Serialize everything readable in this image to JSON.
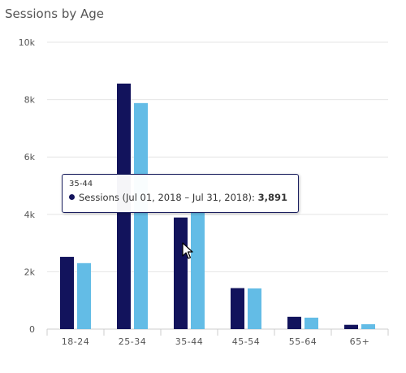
{
  "chart_data": {
    "type": "bar",
    "title": "Sessions by Age",
    "categories": [
      "18-24",
      "25-34",
      "35-44",
      "45-54",
      "55-64",
      "65+"
    ],
    "series": [
      {
        "name": "Sessions (Jul 01, 2018 - Jul 31, 2018)",
        "color": "#12135c",
        "values": [
          2520,
          8560,
          3891,
          1430,
          430,
          150
        ]
      },
      {
        "color": "#63bce6",
        "values": [
          2300,
          7880,
          4100,
          1420,
          400,
          170
        ]
      }
    ],
    "y_ticks": [
      "10k",
      "8k",
      "6k",
      "4k",
      "2k",
      "0"
    ],
    "ylim": [
      0,
      10000
    ],
    "grid": true,
    "xlabel": "",
    "ylabel": ""
  },
  "tooltip": {
    "category": "35-44",
    "label": "Sessions (Jul 01, 2018 – Jul 31, 2018): ",
    "value": "3,891"
  }
}
